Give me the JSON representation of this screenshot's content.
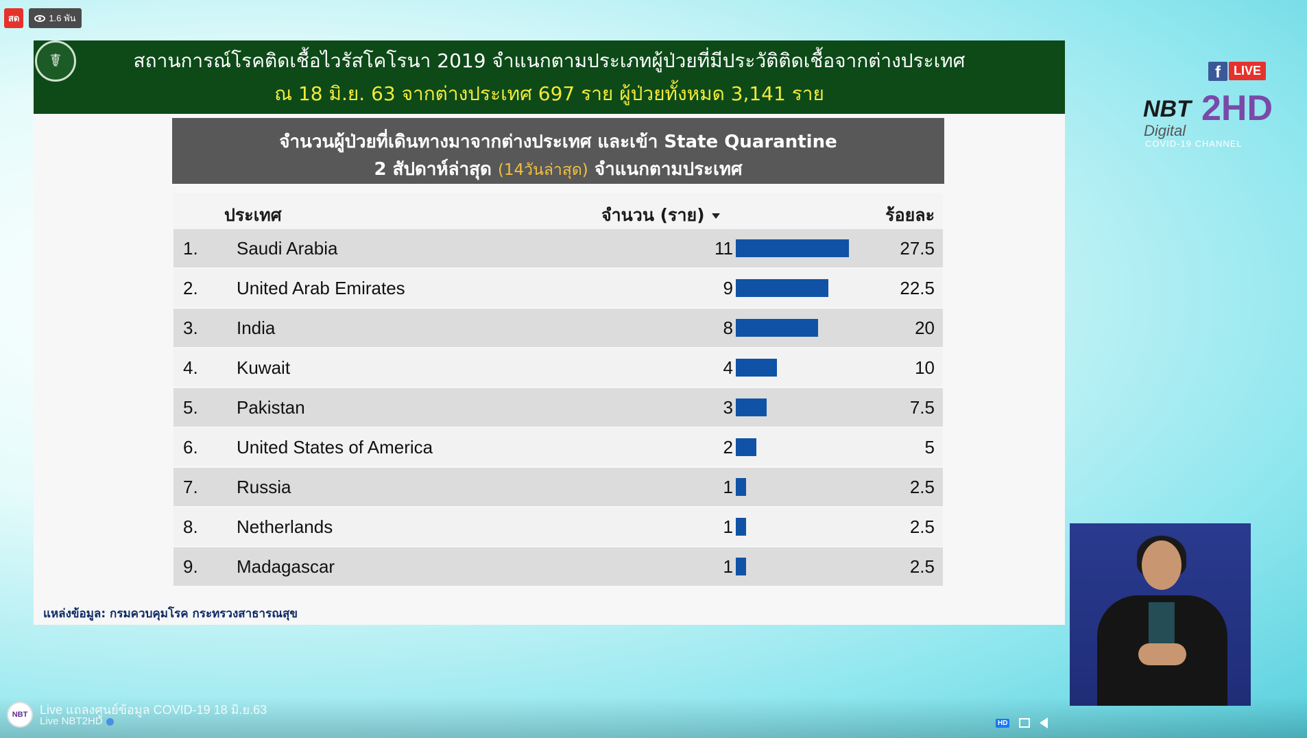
{
  "overlay": {
    "live_label": "สด",
    "views": "1.6 พัน"
  },
  "slide": {
    "title_line1": "สถานการณ์โรคติดเชื้อไวรัสโคโรนา 2019  จำแนกตามประเภทผู้ป่วยที่มีประวัติติดเชื้อจากต่างประเทศ",
    "title_line2": "ณ  18 มิ.ย. 63  จากต่างประเทศ 697 ราย  ผู้ป่วยทั้งหมด 3,141 ราย",
    "panel_title_line1": "จำนวนผู้ป่วยที่เดินทางมาจากต่างประเทศ และเข้า  State Quarantine",
    "panel_title_line2_a": "2 สัปดาห์ล่าสุด ",
    "panel_title_line2_hl": "(14วันล่าสุด)",
    "panel_title_line2_b": " จำแนกตามประเทศ",
    "source": "แหล่งข้อมูล: กรมควบคุมโรค กระทรวงสาธารณสุข"
  },
  "chart_data": {
    "type": "table",
    "columns": [
      "ประเทศ",
      "จำนวน (ราย)",
      "ร้อยละ"
    ],
    "rows": [
      {
        "rank": "1.",
        "country": "Saudi Arabia",
        "count": 11,
        "percent": "27.5"
      },
      {
        "rank": "2.",
        "country": "United Arab Emirates",
        "count": 9,
        "percent": "22.5"
      },
      {
        "rank": "3.",
        "country": "India",
        "count": 8,
        "percent": "20"
      },
      {
        "rank": "4.",
        "country": "Kuwait",
        "count": 4,
        "percent": "10"
      },
      {
        "rank": "5.",
        "country": "Pakistan",
        "count": 3,
        "percent": "7.5"
      },
      {
        "rank": "6.",
        "country": "United States of America",
        "count": 2,
        "percent": "5"
      },
      {
        "rank": "7.",
        "country": "Russia",
        "count": 1,
        "percent": "2.5"
      },
      {
        "rank": "8.",
        "country": "Netherlands",
        "count": 1,
        "percent": "2.5"
      },
      {
        "rank": "9.",
        "country": "Madagascar",
        "count": 1,
        "percent": "2.5"
      }
    ],
    "bar_color": "#1053a6"
  },
  "brand": {
    "facebook": "f",
    "live": "LIVE",
    "nbt": "NBT",
    "two_hd": "2HD",
    "digital": "Digital",
    "covid_channel": "COVID-19 CHANNEL"
  },
  "player": {
    "channel_icon": "NBT",
    "video_title": "Live แถลงศูนย์ข้อมูล COVID-19 18 มิ.ย.63",
    "channel_name": "Live NBT2HD",
    "hd_label": "HD"
  },
  "colors": {
    "header_green": "#0d4a18",
    "title_yellow": "#f2ea3a",
    "panel_gray": "#585858",
    "bar_blue": "#1053a6"
  }
}
